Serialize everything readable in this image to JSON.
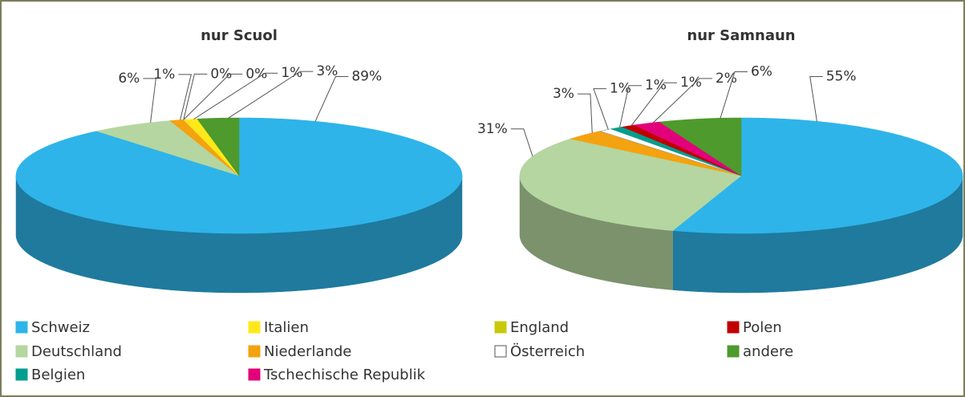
{
  "legend": {
    "items": [
      "Schweiz",
      "Italien",
      "England",
      "Polen",
      "Deutschland",
      "Niederlande",
      "Österreich",
      "andere",
      "Belgien",
      "Tschechische Republik"
    ],
    "colors": [
      "#2eb4e9",
      "#ffe81a",
      "#c9c90a",
      "#c00000",
      "#b5d6a0",
      "#f4a20f",
      "#ffffff",
      "#4e9a2c",
      "#009e8f",
      "#e3007b"
    ]
  },
  "chart_data": [
    {
      "type": "pie",
      "title": "nur Scuol",
      "categories": [
        "Schweiz",
        "Deutschland",
        "Niederlande",
        "Österreich",
        "England",
        "Italien",
        "andere"
      ],
      "values": [
        89,
        6,
        1,
        0,
        0,
        1,
        3
      ],
      "value_labels": [
        "89%",
        "6%",
        "1%",
        "0%",
        "0%",
        "1%",
        "3%"
      ]
    },
    {
      "type": "pie",
      "title": "nur Samnaun",
      "categories": [
        "Schweiz",
        "Deutschland",
        "Niederlande",
        "Österreich",
        "Belgien",
        "Polen",
        "Tschechische Republik",
        "andere"
      ],
      "values": [
        55,
        31,
        3,
        1,
        1,
        1,
        2,
        6
      ],
      "value_labels": [
        "55%",
        "31%",
        "3%",
        "1%",
        "1%",
        "1%",
        "2%",
        "6%"
      ]
    }
  ]
}
